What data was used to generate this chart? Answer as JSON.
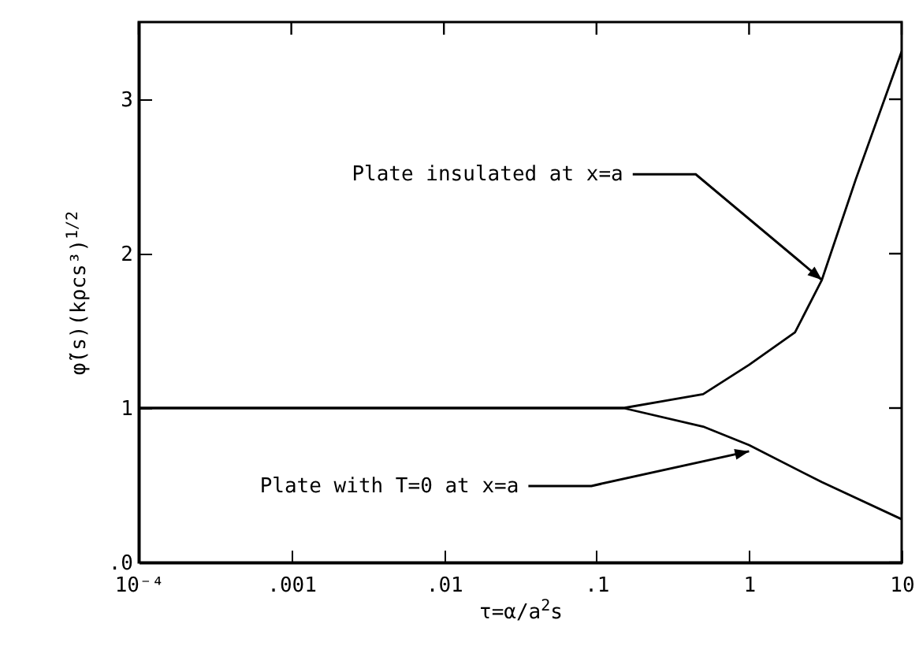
{
  "chart_data": {
    "type": "line",
    "xlabel": "τ=α/a$^{2}$s",
    "ylabel": "φ̃(s)(kρcs³)$^{1/2}$",
    "log": "x",
    "xlim": [
      0.0001,
      10
    ],
    "xticks": [
      {
        "value": 0.0001,
        "label": "10⁻⁴"
      },
      {
        "value": 0.001,
        "label": ".001"
      },
      {
        "value": 0.01,
        "label": ".01"
      },
      {
        "value": 0.1,
        "label": ".1"
      },
      1,
      10
    ],
    "ylim": [
      0,
      3.5
    ],
    "yticks": [
      {
        "value": 0,
        "label": ".0"
      },
      1,
      2,
      3
    ],
    "series": [
      {
        "color": "#000000",
        "x": [
          0.0001,
          0.01,
          0.15,
          0.5,
          1,
          2,
          3,
          5,
          10
        ],
        "values": [
          1,
          1,
          1,
          1.09,
          1.28,
          1.49,
          1.83,
          2.48,
          3.31
        ]
      },
      {
        "color": "#000000",
        "x": [
          0.0001,
          0.01,
          0.15,
          0.5,
          1,
          3,
          10
        ],
        "values": [
          1,
          1,
          1,
          0.88,
          0.76,
          0.52,
          0.28
        ]
      }
    ],
    "annotations": [
      {
        "text": "Plate insulated at x=a",
        "x": 3,
        "y": 1.83
      },
      {
        "text": "Plate with T=0 at x=a",
        "x": 1,
        "y": 0.72
      }
    ],
    "grid": false
  }
}
